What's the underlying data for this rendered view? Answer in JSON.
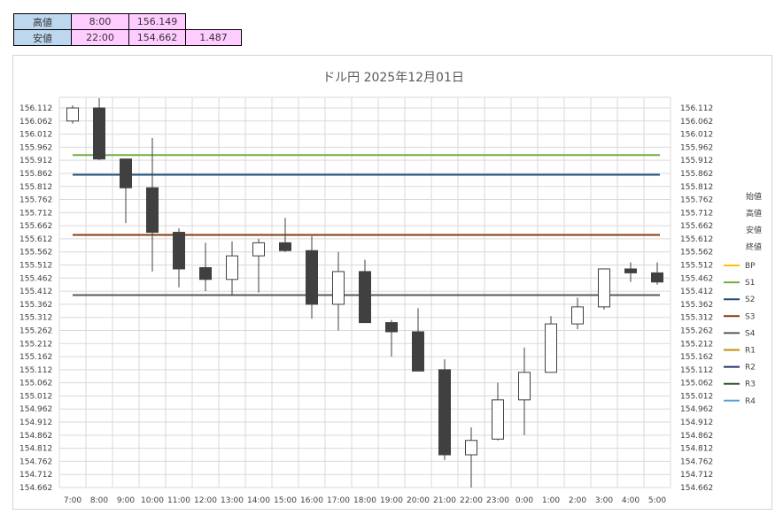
{
  "info_table": {
    "high": {
      "label": "高値",
      "time": "8:00",
      "value": "156.149"
    },
    "low": {
      "label": "安値",
      "time": "22:00",
      "value": "154.662",
      "range": "1.487"
    }
  },
  "chart_data": {
    "type": "candlestick",
    "title": "ドル円  2025年12月01日",
    "categories": [
      "7:00",
      "8:00",
      "9:00",
      "10:00",
      "11:00",
      "12:00",
      "13:00",
      "14:00",
      "15:00",
      "16:00",
      "17:00",
      "18:00",
      "19:00",
      "20:00",
      "21:00",
      "22:00",
      "23:00",
      "0:00",
      "1:00",
      "2:00",
      "3:00",
      "4:00",
      "5:00"
    ],
    "ohlc": [
      {
        "open": 156.062,
        "high": 156.122,
        "low": 156.052,
        "close": 156.112
      },
      {
        "open": 156.112,
        "high": 156.149,
        "low": 155.912,
        "close": 155.917
      },
      {
        "open": 155.917,
        "high": 155.917,
        "low": 155.672,
        "close": 155.807
      },
      {
        "open": 155.807,
        "high": 155.997,
        "low": 155.487,
        "close": 155.637
      },
      {
        "open": 155.637,
        "high": 155.652,
        "low": 155.427,
        "close": 155.497
      },
      {
        "open": 155.502,
        "high": 155.597,
        "low": 155.412,
        "close": 155.457
      },
      {
        "open": 155.457,
        "high": 155.602,
        "low": 155.397,
        "close": 155.547
      },
      {
        "open": 155.547,
        "high": 155.612,
        "low": 155.407,
        "close": 155.597
      },
      {
        "open": 155.597,
        "high": 155.692,
        "low": 155.562,
        "close": 155.567
      },
      {
        "open": 155.567,
        "high": 155.622,
        "low": 155.307,
        "close": 155.362
      },
      {
        "open": 155.362,
        "high": 155.562,
        "low": 155.262,
        "close": 155.487
      },
      {
        "open": 155.487,
        "high": 155.532,
        "low": 155.292,
        "close": 155.292
      },
      {
        "open": 155.292,
        "high": 155.302,
        "low": 155.162,
        "close": 155.257
      },
      {
        "open": 155.257,
        "high": 155.347,
        "low": 155.107,
        "close": 155.107
      },
      {
        "open": 155.112,
        "high": 155.152,
        "low": 154.767,
        "close": 154.787
      },
      {
        "open": 154.787,
        "high": 154.892,
        "low": 154.662,
        "close": 154.842
      },
      {
        "open": 154.847,
        "high": 155.062,
        "low": 154.842,
        "close": 154.997
      },
      {
        "open": 154.997,
        "high": 155.197,
        "low": 154.862,
        "close": 155.102
      },
      {
        "open": 155.102,
        "high": 155.317,
        "low": 155.102,
        "close": 155.287
      },
      {
        "open": 155.287,
        "high": 155.387,
        "low": 155.267,
        "close": 155.352
      },
      {
        "open": 155.352,
        "high": 155.497,
        "low": 155.342,
        "close": 155.497
      },
      {
        "open": 155.497,
        "high": 155.522,
        "low": 155.447,
        "close": 155.482
      },
      {
        "open": 155.482,
        "high": 155.522,
        "low": 155.437,
        "close": 155.447
      }
    ],
    "y_ticks": [
      "156.112",
      "156.062",
      "156.012",
      "155.962",
      "155.912",
      "155.862",
      "155.812",
      "155.762",
      "155.712",
      "155.662",
      "155.612",
      "155.562",
      "155.512",
      "155.462",
      "155.412",
      "155.362",
      "155.312",
      "155.262",
      "155.212",
      "155.162",
      "155.112",
      "155.062",
      "155.012",
      "154.962",
      "154.912",
      "154.862",
      "154.812",
      "154.762",
      "154.712",
      "154.662"
    ],
    "ylim": [
      154.662,
      156.149
    ],
    "levels": [
      {
        "name": "S1",
        "value": 155.932,
        "color": "#70ad47"
      },
      {
        "name": "S2",
        "value": 155.857,
        "color": "#1f4e79"
      },
      {
        "name": "S3",
        "value": 155.627,
        "color": "#843c0c"
      },
      {
        "name": "S4",
        "value": 155.397,
        "color": "#595959"
      }
    ],
    "legend": {
      "position": "right",
      "text_entries": [
        "始値",
        "高値",
        "安値",
        "終値"
      ],
      "line_entries": [
        {
          "name": "BP",
          "color": "#ffc000"
        },
        {
          "name": "S1",
          "color": "#70ad47"
        },
        {
          "name": "S2",
          "color": "#1f4e79"
        },
        {
          "name": "S3",
          "color": "#843c0c"
        },
        {
          "name": "S4",
          "color": "#595959"
        },
        {
          "name": "R1",
          "color": "#bf8f00"
        },
        {
          "name": "R2",
          "color": "#203864"
        },
        {
          "name": "R3",
          "color": "#375623"
        },
        {
          "name": "R4",
          "color": "#5b9bd5"
        }
      ]
    },
    "grid": true,
    "colors": {
      "bear_fill": "#404040",
      "bull_fill": "#ffffff",
      "candle_stroke": "#404040",
      "grid": "#d9d9d9"
    }
  }
}
